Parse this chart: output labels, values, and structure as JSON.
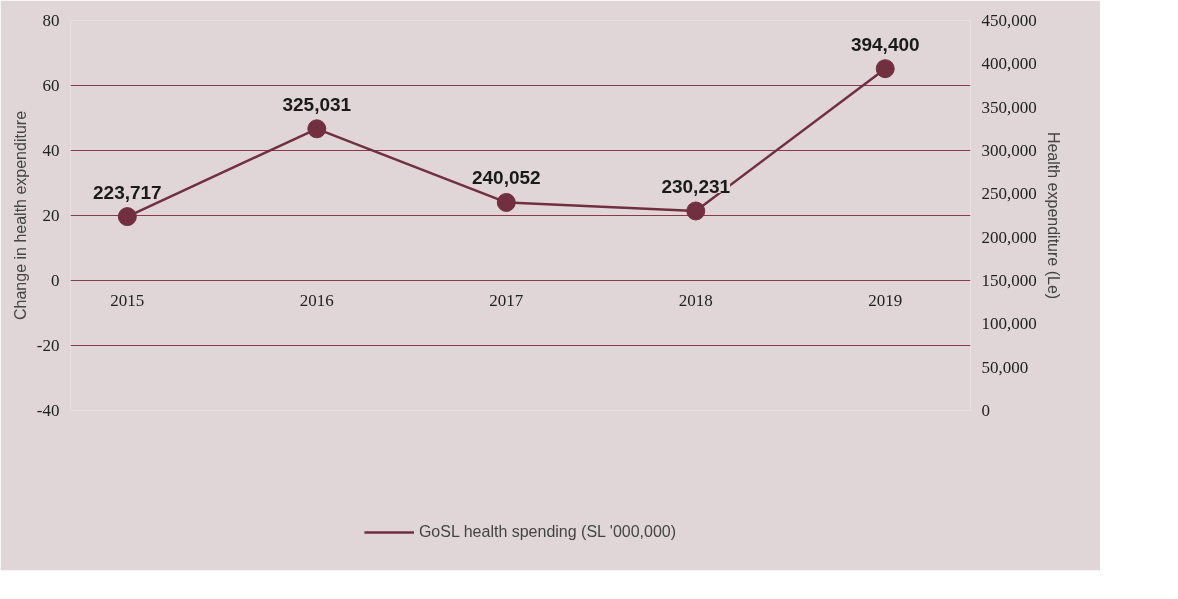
{
  "chart_data": {
    "type": "line",
    "ylabel": "Change in health expenditure",
    "y2label": "Health expenditure (Le)",
    "categories": [
      "2015",
      "2016",
      "2017",
      "2018",
      "2019"
    ],
    "series": [
      {
        "name": "GoSL health spending (SL '000,000)",
        "color": "#722f3f",
        "axis": "y2",
        "values": [
          223717,
          325031,
          240052,
          230231,
          394400
        ],
        "value_labels": [
          "223,717",
          "325,031",
          "240,052",
          "230,231",
          "394,400"
        ]
      }
    ],
    "ylim": [
      -40,
      80
    ],
    "yticks": [
      -40,
      -20,
      0,
      20,
      40,
      60,
      80
    ],
    "y2lim": [
      0,
      450000
    ],
    "y2ticks": [
      {
        "value": 0,
        "label": "0"
      },
      {
        "value": 50000,
        "label": "50,000"
      },
      {
        "value": 100000,
        "label": "100,000"
      },
      {
        "value": 150000,
        "label": "150,000"
      },
      {
        "value": 200000,
        "label": "200,000"
      },
      {
        "value": 250000,
        "label": "250,000"
      },
      {
        "value": 300000,
        "label": "300,000"
      },
      {
        "value": 350000,
        "label": "350,000"
      },
      {
        "value": 400000,
        "label": "400,000"
      },
      {
        "value": 450000,
        "label": "450,000"
      }
    ],
    "grid": "y",
    "legend": "bottom",
    "marker": "circle",
    "line_style": "solid"
  }
}
